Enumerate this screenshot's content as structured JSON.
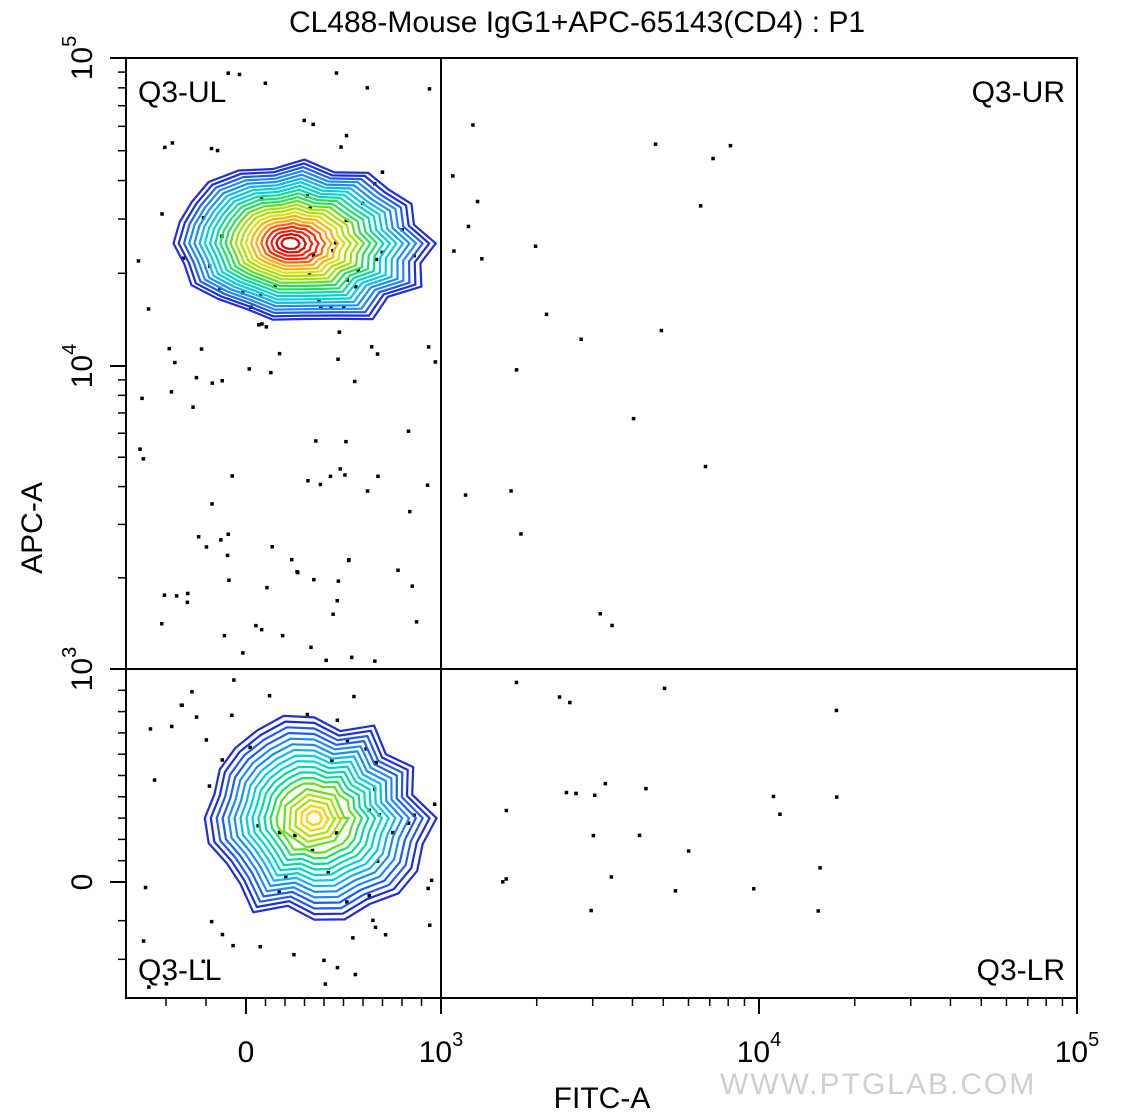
{
  "chart_data": {
    "type": "scatter",
    "title": "CL488-Mouse IgG1+APC-65143(CD4) : P1",
    "xlabel": "FITC-A",
    "ylabel": "APC-A",
    "xscale": "biexponential",
    "yscale": "biexponential",
    "x_ticks": [
      {
        "value": 0,
        "label": "0",
        "exp": ""
      },
      {
        "value": 1000,
        "label": "10",
        "exp": "3"
      },
      {
        "value": 10000,
        "label": "10",
        "exp": "4"
      },
      {
        "value": 100000,
        "label": "10",
        "exp": "5"
      }
    ],
    "y_ticks": [
      {
        "value": 0,
        "label": "0",
        "exp": ""
      },
      {
        "value": 1000,
        "label": "10",
        "exp": "3"
      },
      {
        "value": 10000,
        "label": "10",
        "exp": "4"
      },
      {
        "value": 100000,
        "label": "10",
        "exp": "5"
      }
    ],
    "gates": {
      "x": 1000,
      "y": 1000
    },
    "quadrants": [
      {
        "name": "Q3-UL",
        "position": "top-left"
      },
      {
        "name": "Q3-UR",
        "position": "top-right"
      },
      {
        "name": "Q3-LL",
        "position": "bottom-left"
      },
      {
        "name": "Q3-LR",
        "position": "bottom-right"
      }
    ],
    "populations": [
      {
        "quadrant": "Q3-UL",
        "center": [
          300,
          25000
        ],
        "peak_color": "#ff0000",
        "contour_levels": 22
      },
      {
        "quadrant": "Q3-LL",
        "center": [
          350,
          300
        ],
        "peak_color": "#ffd000",
        "contour_levels": 18
      }
    ],
    "contour_colors": [
      "#1f2fd6",
      "#1f5cf0",
      "#1a8cf5",
      "#10b4f0",
      "#00d0d8",
      "#00dca0",
      "#20e060",
      "#60e020",
      "#a8e000",
      "#e0e000",
      "#ffb000",
      "#ff6000",
      "#ff2000",
      "#e00000"
    ]
  },
  "watermark": "WWW.PTGLAB.COM"
}
